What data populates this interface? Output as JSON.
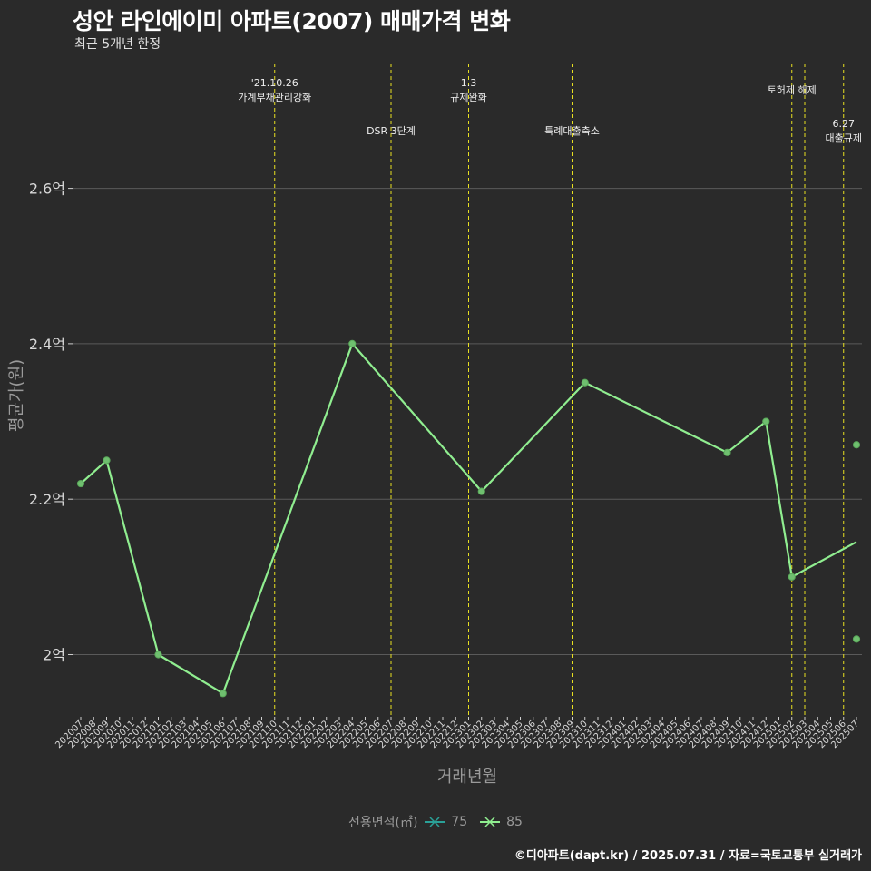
{
  "header": {
    "title": "성안 라인에이미 아파트(2007) 매매가격 변화",
    "subtitle": "최근 5개년 한정"
  },
  "footer": {
    "caption": "©디아파트(dapt.kr) / 2025.07.31 / 자료=국토교통부 실거래가"
  },
  "legend": {
    "title": "전용면적(㎡)",
    "items": [
      {
        "label": "75",
        "color": "#2aa198"
      },
      {
        "label": "85",
        "color": "#90ee90"
      }
    ]
  },
  "colors": {
    "background": "#2a2a2a",
    "grid": "#5a5a5a",
    "event_line": "#e8e020",
    "series_85": "#90ee90"
  },
  "chart_data": {
    "type": "line",
    "xlabel": "거래년월",
    "ylabel": "평균가(원)",
    "ylim": [
      1.92,
      2.77
    ],
    "yticks": [
      {
        "value": 2.0,
        "label": "2억"
      },
      {
        "value": 2.2,
        "label": "2.2억"
      },
      {
        "value": 2.4,
        "label": "2.4억"
      },
      {
        "value": 2.6,
        "label": "2.6억"
      }
    ],
    "categories": [
      "202007",
      "202008",
      "202009",
      "202010",
      "202011",
      "202012",
      "202101",
      "202102",
      "202103",
      "202104",
      "202105",
      "202106",
      "202107",
      "202108",
      "202109",
      "202110",
      "202111",
      "202112",
      "202201",
      "202202",
      "202203",
      "202204",
      "202205",
      "202206",
      "202207",
      "202208",
      "202209",
      "202210",
      "202211",
      "202212",
      "202301",
      "202302",
      "202303",
      "202304",
      "202305",
      "202306",
      "202307",
      "202308",
      "202309",
      "202310",
      "202311",
      "202312",
      "202401",
      "202402",
      "202403",
      "202404",
      "202405",
      "202406",
      "202407",
      "202408",
      "202409",
      "202410",
      "202411",
      "202412",
      "202501",
      "202502",
      "202503",
      "202504",
      "202505",
      "202506",
      "202507"
    ],
    "series": [
      {
        "name": "85",
        "line": [
          {
            "x": "202007",
            "y": 2.22
          },
          {
            "x": "202009",
            "y": 2.25
          },
          {
            "x": "202101",
            "y": 2.0
          },
          {
            "x": "202106",
            "y": 1.95
          },
          {
            "x": "202204",
            "y": 2.4
          },
          {
            "x": "202302",
            "y": 2.21
          },
          {
            "x": "202310",
            "y": 2.35
          },
          {
            "x": "202409",
            "y": 2.26
          },
          {
            "x": "202412",
            "y": 2.3
          },
          {
            "x": "202502",
            "y": 2.1
          },
          {
            "x": "202507",
            "y": 2.145
          }
        ],
        "points": [
          {
            "x": "202007",
            "y": 2.22
          },
          {
            "x": "202009",
            "y": 2.25
          },
          {
            "x": "202101",
            "y": 2.0
          },
          {
            "x": "202106",
            "y": 1.95
          },
          {
            "x": "202204",
            "y": 2.4
          },
          {
            "x": "202302",
            "y": 2.21
          },
          {
            "x": "202310",
            "y": 2.35
          },
          {
            "x": "202409",
            "y": 2.26
          },
          {
            "x": "202412",
            "y": 2.3
          },
          {
            "x": "202502",
            "y": 2.1
          },
          {
            "x": "202507",
            "y": 2.27
          },
          {
            "x": "202507",
            "y": 2.02
          }
        ]
      }
    ],
    "events": [
      {
        "x": "202110",
        "lines": [
          "'21.10.26",
          "가계부채관리강화"
        ],
        "row": 1
      },
      {
        "x": "202207",
        "lines": [
          "DSR 3단계"
        ],
        "row": 2
      },
      {
        "x": "202301",
        "lines": [
          "1.3",
          "규제완화"
        ],
        "row": 1
      },
      {
        "x": "202309",
        "lines": [
          "특례대출축소"
        ],
        "row": 2
      },
      {
        "x": "202502",
        "lines": [
          "토허제 해제"
        ],
        "row": 1
      },
      {
        "x": "202503",
        "lines": [],
        "row": 1
      },
      {
        "x": "202506",
        "lines": [
          "6.27",
          "대출규제"
        ],
        "row": 2
      }
    ]
  }
}
